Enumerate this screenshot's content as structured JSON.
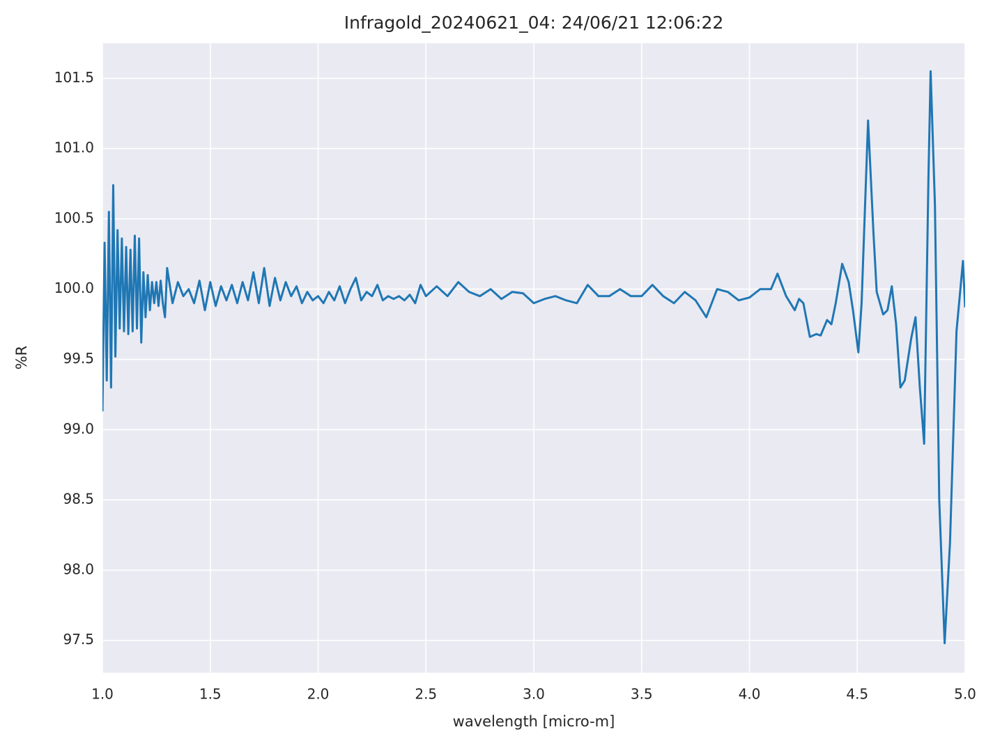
{
  "chart_data": {
    "type": "line",
    "title": "Infragold_20240621_04:  24/06/21 12:06:22",
    "xlabel": "wavelength [micro-m]",
    "ylabel": "%R",
    "color": "#1f77b4",
    "grid": true,
    "xlim": [
      1,
      5
    ],
    "ylim": [
      97.27,
      101.75
    ],
    "xticks": [
      {
        "value": 1,
        "label": "1.0"
      },
      1.5,
      {
        "value": 2,
        "label": "2.0"
      },
      2.5,
      {
        "value": 3,
        "label": "3.0"
      },
      3.5,
      {
        "value": 4,
        "label": "4.0"
      },
      4.5,
      {
        "value": 5,
        "label": "5.0"
      }
    ],
    "yticks": [
      97.5,
      {
        "value": 98,
        "label": "98.0"
      },
      98.5,
      {
        "value": 99,
        "label": "99.0"
      },
      99.5,
      {
        "value": 100,
        "label": "100.0"
      },
      100.5,
      {
        "value": 101,
        "label": "101.0"
      },
      101.5
    ],
    "x": [
      1.0,
      1.01,
      1.02,
      1.03,
      1.04,
      1.05,
      1.06,
      1.07,
      1.08,
      1.09,
      1.1,
      1.11,
      1.12,
      1.13,
      1.14,
      1.15,
      1.16,
      1.17,
      1.18,
      1.19,
      1.2,
      1.21,
      1.22,
      1.23,
      1.24,
      1.25,
      1.26,
      1.27,
      1.28,
      1.29,
      1.3,
      1.325,
      1.35,
      1.375,
      1.4,
      1.425,
      1.45,
      1.475,
      1.5,
      1.525,
      1.55,
      1.575,
      1.6,
      1.625,
      1.65,
      1.675,
      1.7,
      1.725,
      1.75,
      1.775,
      1.8,
      1.825,
      1.85,
      1.875,
      1.9,
      1.925,
      1.95,
      1.975,
      2.0,
      2.025,
      2.05,
      2.075,
      2.1,
      2.125,
      2.15,
      2.175,
      2.2,
      2.225,
      2.25,
      2.275,
      2.3,
      2.325,
      2.35,
      2.375,
      2.4,
      2.425,
      2.45,
      2.475,
      2.5,
      2.55,
      2.6,
      2.65,
      2.7,
      2.75,
      2.8,
      2.85,
      2.9,
      2.95,
      3.0,
      3.05,
      3.1,
      3.15,
      3.2,
      3.25,
      3.3,
      3.35,
      3.4,
      3.45,
      3.5,
      3.55,
      3.6,
      3.65,
      3.7,
      3.75,
      3.8,
      3.85,
      3.9,
      3.95,
      4.0,
      4.05,
      4.1,
      4.13,
      4.17,
      4.21,
      4.23,
      4.25,
      4.28,
      4.31,
      4.33,
      4.36,
      4.38,
      4.4,
      4.43,
      4.46,
      4.48,
      4.505,
      4.52,
      4.55,
      4.575,
      4.59,
      4.62,
      4.64,
      4.66,
      4.68,
      4.7,
      4.72,
      4.75,
      4.77,
      4.79,
      4.81,
      4.83,
      4.84,
      4.86,
      4.88,
      4.905,
      4.93,
      4.96,
      4.99,
      5.0
    ],
    "values": [
      99.13,
      100.33,
      99.35,
      100.55,
      99.3,
      100.74,
      99.52,
      100.42,
      99.72,
      100.36,
      99.7,
      100.3,
      99.68,
      100.28,
      99.7,
      100.38,
      99.72,
      100.36,
      99.62,
      100.12,
      99.8,
      100.1,
      99.85,
      100.05,
      99.9,
      100.05,
      99.88,
      100.06,
      99.9,
      99.8,
      100.15,
      99.9,
      100.05,
      99.95,
      100.0,
      99.9,
      100.06,
      99.85,
      100.05,
      99.88,
      100.02,
      99.92,
      100.03,
      99.9,
      100.05,
      99.92,
      100.12,
      99.9,
      100.15,
      99.88,
      100.08,
      99.92,
      100.05,
      99.95,
      100.02,
      99.9,
      99.98,
      99.92,
      99.95,
      99.9,
      99.98,
      99.92,
      100.02,
      99.9,
      100.0,
      100.08,
      99.92,
      99.98,
      99.95,
      100.03,
      99.92,
      99.95,
      99.93,
      99.95,
      99.92,
      99.96,
      99.9,
      100.03,
      99.95,
      100.02,
      99.95,
      100.05,
      99.98,
      99.95,
      100.0,
      99.93,
      99.98,
      99.97,
      99.9,
      99.93,
      99.95,
      99.92,
      99.9,
      100.03,
      99.95,
      99.95,
      100.0,
      99.95,
      99.95,
      100.03,
      99.95,
      99.9,
      99.98,
      99.92,
      99.8,
      100.0,
      99.98,
      99.92,
      99.94,
      100.0,
      100.0,
      100.11,
      99.95,
      99.85,
      99.93,
      99.9,
      99.66,
      99.68,
      99.67,
      99.78,
      99.75,
      99.9,
      100.18,
      100.05,
      99.85,
      99.55,
      99.9,
      101.2,
      100.4,
      99.98,
      99.82,
      99.85,
      100.02,
      99.75,
      99.3,
      99.35,
      99.65,
      99.8,
      99.3,
      98.9,
      100.8,
      101.55,
      100.6,
      98.5,
      97.48,
      98.2,
      99.7,
      100.2,
      99.87
    ]
  }
}
